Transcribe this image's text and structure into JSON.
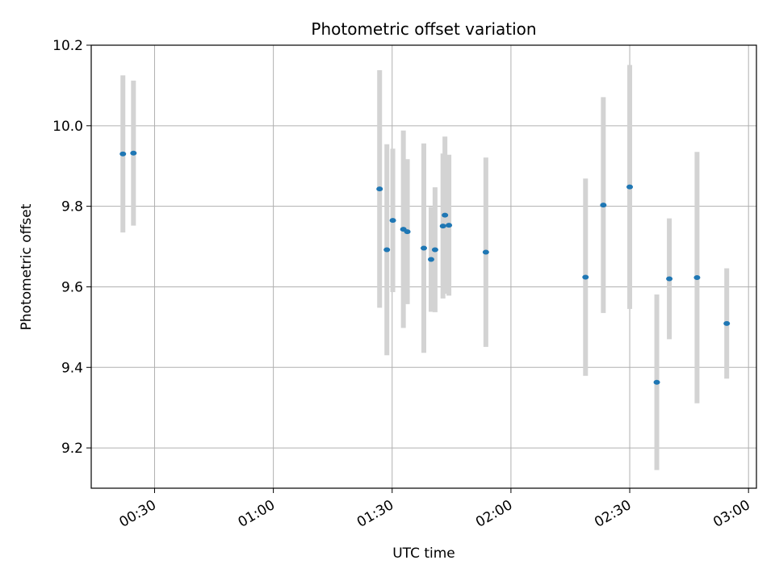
{
  "chart_data": {
    "type": "scatter",
    "title": "Photometric offset variation",
    "xlabel": "UTC time",
    "ylabel": "Photometric offset",
    "xlim": [
      "00:14",
      "03:02"
    ],
    "ylim": [
      9.1,
      10.2
    ],
    "xticks": [
      "00:30",
      "01:00",
      "01:30",
      "02:00",
      "02:30",
      "03:00"
    ],
    "yticks": [
      9.2,
      9.4,
      9.6,
      9.8,
      10.0,
      10.2
    ],
    "grid": true,
    "colors": {
      "point": "#1f77b4",
      "errorbar": "#d3d3d3",
      "grid": "#b0b0b0"
    },
    "series": [
      {
        "points": [
          {
            "x": "00:22:00",
            "y": 9.93,
            "err": 0.195
          },
          {
            "x": "00:24:40",
            "y": 9.932,
            "err": 0.18
          },
          {
            "x": "01:26:50",
            "y": 9.843,
            "err": 0.295
          },
          {
            "x": "01:28:40",
            "y": 9.692,
            "err": 0.262
          },
          {
            "x": "01:30:10",
            "y": 9.765,
            "err": 0.178
          },
          {
            "x": "01:32:50",
            "y": 9.743,
            "err": 0.245
          },
          {
            "x": "01:33:50",
            "y": 9.737,
            "err": 0.18
          },
          {
            "x": "01:38:00",
            "y": 9.696,
            "err": 0.26
          },
          {
            "x": "01:39:50",
            "y": 9.668,
            "err": 0.13
          },
          {
            "x": "01:40:50",
            "y": 9.692,
            "err": 0.155
          },
          {
            "x": "01:42:50",
            "y": 9.751,
            "err": 0.18
          },
          {
            "x": "01:43:20",
            "y": 9.778,
            "err": 0.195
          },
          {
            "x": "01:44:20",
            "y": 9.753,
            "err": 0.175
          },
          {
            "x": "01:53:40",
            "y": 9.686,
            "err": 0.235
          },
          {
            "x": "02:18:50",
            "y": 9.624,
            "err": 0.245
          },
          {
            "x": "02:23:20",
            "y": 9.803,
            "err": 0.268
          },
          {
            "x": "02:30:00",
            "y": 9.848,
            "err": 0.303
          },
          {
            "x": "02:36:50",
            "y": 9.363,
            "err": 0.218
          },
          {
            "x": "02:40:00",
            "y": 9.62,
            "err": 0.15
          },
          {
            "x": "02:47:00",
            "y": 9.623,
            "err": 0.312
          },
          {
            "x": "02:54:30",
            "y": 9.509,
            "err": 0.137
          }
        ]
      }
    ]
  }
}
